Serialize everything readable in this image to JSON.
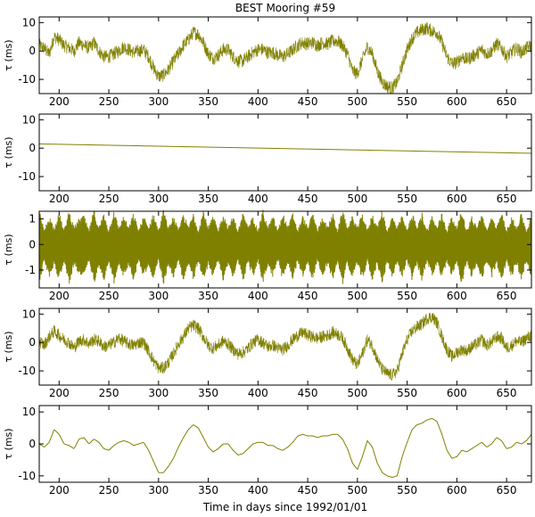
{
  "title": "BEST Mooring #59",
  "xlabel": "Time in days since 1992/01/01",
  "series_color": "#808000",
  "chart_data": [
    {
      "type": "line",
      "ylabel": "τ (ms)",
      "xlim": [
        180,
        675
      ],
      "ylim": [
        -15,
        12
      ],
      "xticks": [
        200,
        250,
        300,
        350,
        400,
        450,
        500,
        550,
        600,
        650
      ],
      "yticks": [
        -10,
        0,
        10
      ],
      "x": [
        180,
        185,
        190,
        195,
        200,
        205,
        210,
        215,
        220,
        225,
        230,
        235,
        240,
        245,
        250,
        255,
        260,
        265,
        270,
        275,
        280,
        285,
        290,
        295,
        300,
        305,
        310,
        315,
        320,
        325,
        330,
        335,
        340,
        345,
        350,
        355,
        360,
        365,
        370,
        375,
        380,
        385,
        390,
        395,
        400,
        405,
        410,
        415,
        420,
        425,
        430,
        435,
        440,
        445,
        450,
        455,
        460,
        465,
        470,
        475,
        480,
        485,
        490,
        495,
        500,
        505,
        510,
        515,
        520,
        525,
        530,
        535,
        540,
        545,
        550,
        555,
        560,
        565,
        570,
        575,
        580,
        585,
        590,
        595,
        600,
        605,
        610,
        615,
        620,
        625,
        630,
        635,
        640,
        645,
        650,
        655,
        660,
        665,
        670,
        675
      ],
      "y": [
        2.0,
        1.0,
        -1.0,
        5.0,
        4.0,
        2.0,
        1.0,
        0.0,
        3.0,
        2.0,
        1.0,
        3.0,
        0.0,
        -2.0,
        -2.0,
        -1.0,
        0.0,
        1.5,
        0.5,
        -0.5,
        0.0,
        0.5,
        -2.0,
        -6.0,
        -9.0,
        -8.5,
        -6.5,
        -3.5,
        -1.0,
        2.0,
        4.0,
        6.5,
        6.0,
        3.0,
        -1.0,
        -2.5,
        -1.5,
        0.5,
        0.5,
        -2.0,
        -3.5,
        -3.5,
        -2.0,
        -0.5,
        0.5,
        0.5,
        -0.5,
        -0.5,
        -1.5,
        -2.0,
        -1.0,
        0.5,
        2.0,
        3.0,
        2.5,
        3.0,
        2.0,
        3.0,
        2.5,
        3.5,
        3.5,
        2.0,
        -1.0,
        -7.0,
        -8.0,
        -3.0,
        1.5,
        -1.0,
        -7.0,
        -11.0,
        -12.5,
        -13.0,
        -11.0,
        -5.0,
        0.5,
        4.5,
        6.5,
        7.5,
        8.0,
        7.0,
        6.5,
        3.0,
        -2.0,
        -4.5,
        -4.0,
        -2.0,
        -3.0,
        -2.0,
        -1.0,
        0.5,
        -1.0,
        0.0,
        2.5,
        1.0,
        -2.0,
        -0.5,
        1.0,
        -0.5,
        1.0,
        2.0
      ],
      "noise_amplitude": 2.4
    },
    {
      "type": "line",
      "ylabel": "τ (ms)",
      "xlim": [
        180,
        675
      ],
      "ylim": [
        -15,
        12
      ],
      "xticks": [
        200,
        250,
        300,
        350,
        400,
        450,
        500,
        550,
        600,
        650
      ],
      "yticks": [
        -10,
        0,
        10
      ],
      "x": [
        180,
        675
      ],
      "y": [
        1.5,
        -1.8
      ],
      "noise_amplitude": 0
    },
    {
      "type": "line",
      "ylabel": "τ (ms)",
      "xlim": [
        180,
        675
      ],
      "ylim": [
        -1.7,
        1.3
      ],
      "xticks": [
        200,
        250,
        300,
        350,
        400,
        450,
        500,
        550,
        600,
        650
      ],
      "yticks": [
        -1,
        0,
        1
      ],
      "x": [
        180,
        185,
        190,
        195,
        200,
        205,
        210,
        215,
        220,
        225,
        230,
        235,
        240,
        245,
        250,
        255,
        260,
        265,
        270,
        275,
        280,
        285,
        290,
        295,
        300,
        305,
        310,
        315,
        320,
        325,
        330,
        335,
        340,
        345,
        350,
        355,
        360,
        365,
        370,
        375,
        380,
        385,
        390,
        395,
        400,
        405,
        410,
        415,
        420,
        425,
        430,
        435,
        440,
        445,
        450,
        455,
        460,
        465,
        470,
        475,
        480,
        485,
        490,
        495,
        500,
        505,
        510,
        515,
        520,
        525,
        530,
        535,
        540,
        545,
        550,
        555,
        560,
        565,
        570,
        575,
        580,
        585,
        590,
        595,
        600,
        605,
        610,
        615,
        620,
        625,
        630,
        635,
        640,
        645,
        650,
        655,
        660,
        665,
        670,
        675
      ],
      "envelope": [
        1.2,
        0.5,
        1.0,
        0.6,
        1.1,
        0.5,
        1.2,
        0.6,
        0.9,
        1.0,
        0.5,
        1.2,
        0.6,
        1.1,
        0.5,
        1.2,
        0.6,
        1.0,
        0.6,
        1.1,
        0.5,
        1.0,
        0.6,
        1.1,
        0.5,
        1.2,
        0.6,
        1.0,
        0.5,
        1.1,
        0.6,
        1.1,
        0.5,
        1.2,
        0.6,
        1.0,
        0.5,
        1.1,
        0.6,
        1.0,
        0.5,
        1.1,
        0.6,
        1.0,
        0.5,
        1.2,
        0.6,
        1.0,
        0.5,
        1.1,
        0.6,
        1.1,
        0.5,
        1.0,
        0.6,
        1.1,
        0.5,
        1.0,
        0.6,
        1.1,
        0.5,
        1.2,
        0.6,
        1.0,
        0.6,
        1.1,
        0.5,
        1.1,
        0.6,
        1.2,
        0.5,
        1.0,
        0.6,
        1.0,
        0.5,
        1.1,
        0.6,
        1.1,
        0.5,
        1.0,
        0.6,
        1.1,
        0.5,
        1.0,
        0.6,
        1.2,
        0.5,
        1.0,
        0.6,
        1.1,
        0.5,
        1.0,
        0.6,
        1.1,
        0.5,
        1.0,
        0.6,
        1.1,
        0.5,
        1.0
      ],
      "noise_amplitude": 0
    },
    {
      "type": "line",
      "ylabel": "τ (ms)",
      "xlim": [
        180,
        675
      ],
      "ylim": [
        -15,
        12
      ],
      "xticks": [
        200,
        250,
        300,
        350,
        400,
        450,
        500,
        550,
        600,
        650
      ],
      "yticks": [
        -10,
        0,
        10
      ],
      "x": [
        180,
        185,
        190,
        195,
        200,
        205,
        210,
        215,
        220,
        225,
        230,
        235,
        240,
        245,
        250,
        255,
        260,
        265,
        270,
        275,
        280,
        285,
        290,
        295,
        300,
        305,
        310,
        315,
        320,
        325,
        330,
        335,
        340,
        345,
        350,
        355,
        360,
        365,
        370,
        375,
        380,
        385,
        390,
        395,
        400,
        405,
        410,
        415,
        420,
        425,
        430,
        435,
        440,
        445,
        450,
        455,
        460,
        465,
        470,
        475,
        480,
        485,
        490,
        495,
        500,
        505,
        510,
        515,
        520,
        525,
        530,
        535,
        540,
        545,
        550,
        555,
        560,
        565,
        570,
        575,
        580,
        585,
        590,
        595,
        600,
        605,
        610,
        615,
        620,
        625,
        630,
        635,
        640,
        645,
        650,
        655,
        660,
        665,
        670,
        675
      ],
      "y": [
        0.5,
        -1.0,
        2.0,
        4.0,
        2.5,
        1.0,
        0.0,
        -2.0,
        0.5,
        1.0,
        -0.5,
        1.0,
        0.5,
        -1.5,
        -1.0,
        0.0,
        1.5,
        0.5,
        -0.5,
        -1.0,
        0.0,
        0.0,
        -3.0,
        -6.5,
        -9.0,
        -9.0,
        -7.0,
        -4.0,
        -0.5,
        2.0,
        5.0,
        6.0,
        5.0,
        2.0,
        -1.0,
        -2.0,
        -1.0,
        0.5,
        -0.5,
        -2.5,
        -4.0,
        -3.5,
        -2.0,
        0.0,
        1.0,
        0.0,
        -1.5,
        -1.0,
        -2.0,
        -2.5,
        -1.0,
        1.0,
        2.5,
        3.5,
        2.5,
        2.0,
        1.5,
        2.0,
        2.5,
        3.5,
        3.0,
        1.5,
        -2.0,
        -6.0,
        -8.0,
        -4.0,
        1.0,
        -1.0,
        -6.0,
        -9.5,
        -11.0,
        -11.5,
        -10.0,
        -4.0,
        1.0,
        4.0,
        5.5,
        6.5,
        8.5,
        9.0,
        7.0,
        2.0,
        -2.5,
        -5.0,
        -3.5,
        -2.5,
        -3.0,
        -1.5,
        -0.5,
        1.0,
        -1.0,
        0.0,
        2.0,
        1.5,
        -2.0,
        -1.0,
        0.5,
        0.0,
        1.5,
        2.5
      ],
      "noise_amplitude": 2.2
    },
    {
      "type": "line",
      "ylabel": "τ (ms)",
      "xlim": [
        180,
        675
      ],
      "ylim": [
        -12,
        12
      ],
      "xticks": [
        200,
        250,
        300,
        350,
        400,
        450,
        500,
        550,
        600,
        650
      ],
      "yticks": [
        -10,
        0,
        10
      ],
      "x": [
        180,
        185,
        190,
        195,
        200,
        205,
        210,
        215,
        220,
        225,
        230,
        235,
        240,
        245,
        250,
        255,
        260,
        265,
        270,
        275,
        280,
        285,
        290,
        295,
        300,
        305,
        310,
        315,
        320,
        325,
        330,
        335,
        340,
        345,
        350,
        355,
        360,
        365,
        370,
        375,
        380,
        385,
        390,
        395,
        400,
        405,
        410,
        415,
        420,
        425,
        430,
        435,
        440,
        445,
        450,
        455,
        460,
        465,
        470,
        475,
        480,
        485,
        490,
        495,
        500,
        505,
        510,
        515,
        520,
        525,
        530,
        535,
        540,
        545,
        550,
        555,
        560,
        565,
        570,
        575,
        580,
        585,
        590,
        595,
        600,
        605,
        610,
        615,
        620,
        625,
        630,
        635,
        640,
        645,
        650,
        655,
        660,
        665,
        670,
        675
      ],
      "y": [
        0.0,
        -1.0,
        0.5,
        4.5,
        3.0,
        0.0,
        -0.5,
        -1.5,
        1.5,
        2.0,
        0.0,
        1.5,
        0.5,
        -1.5,
        -2.0,
        -0.5,
        0.5,
        1.0,
        0.5,
        -0.5,
        0.0,
        0.5,
        -2.0,
        -5.5,
        -9.0,
        -9.0,
        -7.0,
        -4.5,
        -1.0,
        2.0,
        4.5,
        6.0,
        5.0,
        2.0,
        -1.0,
        -2.5,
        -1.5,
        0.0,
        0.0,
        -2.0,
        -3.5,
        -3.0,
        -1.5,
        0.0,
        0.5,
        0.5,
        -0.5,
        -0.5,
        -1.5,
        -2.0,
        -1.0,
        0.5,
        2.5,
        3.0,
        2.5,
        2.5,
        2.0,
        2.5,
        2.5,
        3.0,
        3.0,
        1.5,
        -1.5,
        -6.0,
        -8.0,
        -4.0,
        1.0,
        -1.0,
        -6.0,
        -9.0,
        -10.0,
        -10.5,
        -10.0,
        -4.0,
        0.5,
        4.5,
        6.0,
        6.5,
        7.5,
        8.0,
        7.0,
        3.0,
        -2.0,
        -4.5,
        -4.0,
        -2.0,
        -2.5,
        -1.5,
        -0.5,
        0.5,
        -1.0,
        0.0,
        2.0,
        1.0,
        -1.5,
        -1.0,
        0.5,
        0.0,
        1.0,
        3.0
      ],
      "noise_amplitude": 0
    }
  ]
}
